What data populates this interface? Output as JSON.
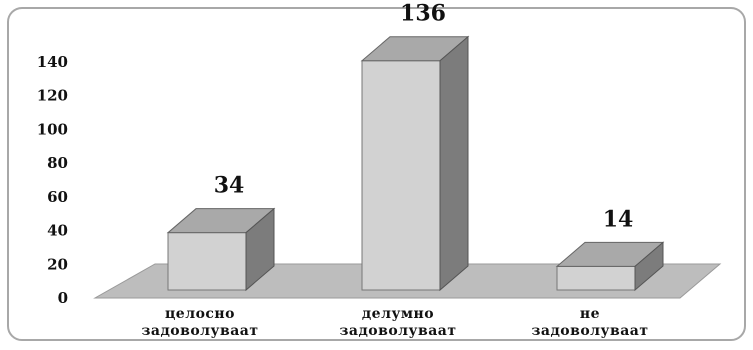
{
  "chart_data": {
    "type": "bar",
    "style": "3d",
    "categories": [
      [
        "целосно",
        "задоволуваат"
      ],
      [
        "делумно",
        "задоволуваат"
      ],
      [
        "не",
        "задоволуваат"
      ]
    ],
    "values": [
      34,
      136,
      14
    ],
    "data_labels": [
      "34",
      "136",
      "14"
    ],
    "ylim": [
      0,
      140
    ],
    "yticks": [
      0,
      20,
      40,
      60,
      80,
      100,
      120,
      140
    ],
    "title": "",
    "xlabel": "",
    "ylabel": "",
    "grid": false,
    "legend": "none",
    "colors": {
      "bar_front": "#d2d2d2",
      "bar_top": "#a9a9a9",
      "bar_side": "#7c7c7c",
      "floor": "#bdbdbd",
      "frame": "#a8a8a8"
    }
  }
}
